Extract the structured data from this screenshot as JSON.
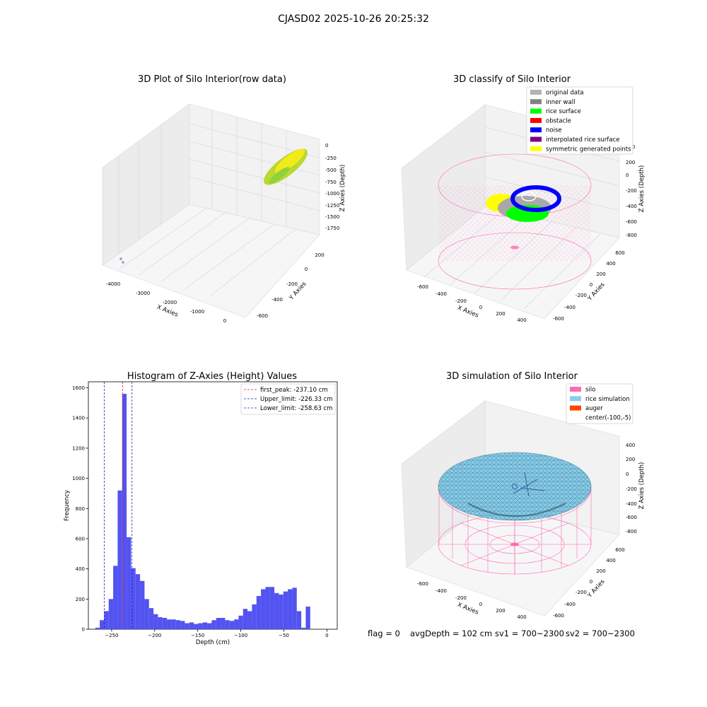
{
  "suptitle": "CJASD02 2025-10-26 20:25:32",
  "footer": {
    "flag": "flag = 0",
    "avg_depth": "avgDepth = 102 cm",
    "sv1": "sv1 = 700~2300",
    "sv2": "sv2 = 700~2300"
  },
  "colors": {
    "histogram_bars": "#4a4af0",
    "first_peak_line": "#e02020",
    "limit_lines": "#2020c0",
    "silo_wire": "#ff69b4",
    "rice_simulation": "#87ceeb",
    "auger": "#ff4500",
    "rice_surface": "#00ff00",
    "noise": "#0000ff",
    "symmetric_points": "#ffff00",
    "raw_points": "#a8d830"
  },
  "panel_raw": {
    "title": "3D Plot of Silo Interior(row data)",
    "x_label": "X Axies",
    "y_label": "Y Axies",
    "z_label": "Z Axies (Depth)",
    "x_ticks": [
      "-4000",
      "-3000",
      "-2000",
      "-1000",
      "0"
    ],
    "y_ticks": [
      "-600",
      "-400",
      "-200",
      "0",
      "200"
    ],
    "z_ticks": [
      "0",
      "-250",
      "-500",
      "-750",
      "-1000",
      "-1250",
      "-1500",
      "-1750"
    ]
  },
  "panel_classify": {
    "title": "3D classify of Silo Interior",
    "x_label": "X Axies",
    "y_label": "Y Axies",
    "z_label": "Z Axies (Depth)",
    "x_ticks": [
      "-600",
      "-400",
      "-200",
      "0",
      "200",
      "400"
    ],
    "y_ticks": [
      "-600",
      "-400",
      "-200",
      "0",
      "200",
      "400",
      "600"
    ],
    "z_ticks": [
      "200",
      "0",
      "-200",
      "-400",
      "-600",
      "-800"
    ],
    "legend": [
      {
        "label": "original data",
        "color": "#b4b4b4"
      },
      {
        "label": "inner wall",
        "color": "#808080"
      },
      {
        "label": "rice surface",
        "color": "#00ff00"
      },
      {
        "label": "obstacle",
        "color": "#ff0000"
      },
      {
        "label": "noise",
        "color": "#0000ff"
      },
      {
        "label": "interpolated rice surface",
        "color": "#800080"
      },
      {
        "label": "symmetric generated points",
        "color": "#ffff00"
      }
    ]
  },
  "panel_sim": {
    "title": "3D simulation of Silo Interior",
    "x_label": "X Axies",
    "y_label": "Y Axies",
    "z_label": "Z Axies (Depth)",
    "x_ticks": [
      "-600",
      "-400",
      "-200",
      "0",
      "200",
      "400"
    ],
    "y_ticks": [
      "-600",
      "-400",
      "-200",
      "0",
      "200",
      "400",
      "600"
    ],
    "z_ticks": [
      "400",
      "200",
      "0",
      "-200",
      "-400",
      "-600",
      "-800"
    ],
    "legend": [
      {
        "label": "silo",
        "color": "#ff69b4"
      },
      {
        "label": "rice simulation",
        "color": "#87ceeb"
      },
      {
        "label": "auger",
        "color": "#ff4500"
      },
      {
        "label": "center(-100,-5)",
        "color": ""
      }
    ]
  },
  "chart_data": {
    "type": "bar",
    "title": "Histogram of Z-Axies (Height) Values",
    "xlabel": "Depth (cm)",
    "ylabel": "Frequency",
    "xlim": [
      -277,
      12
    ],
    "ylim": [
      0,
      1640
    ],
    "x_ticks": [
      -250,
      -200,
      -150,
      -100,
      -50,
      0
    ],
    "y_ticks": [
      0,
      200,
      400,
      600,
      800,
      1000,
      1200,
      1400,
      1600
    ],
    "bin_width": 5.2,
    "bin_start": -269,
    "values": [
      10,
      60,
      120,
      200,
      420,
      920,
      1560,
      610,
      405,
      365,
      320,
      200,
      140,
      100,
      80,
      75,
      65,
      65,
      60,
      55,
      40,
      45,
      35,
      40,
      45,
      40,
      60,
      75,
      75,
      60,
      55,
      65,
      90,
      135,
      120,
      165,
      220,
      265,
      280,
      280,
      240,
      230,
      250,
      265,
      275,
      120,
      10,
      150
    ],
    "vlines": [
      {
        "label": "first_peak: -237.10 cm",
        "x": -237.1,
        "color": "#e02020"
      },
      {
        "label": "Upper_limit: -226.33 cm",
        "x": -226.33,
        "color": "#2020c0"
      },
      {
        "label": "Lower_limit: -258.63 cm",
        "x": -258.63,
        "color": "#2020c0"
      }
    ],
    "legend_position": "upper-right"
  }
}
